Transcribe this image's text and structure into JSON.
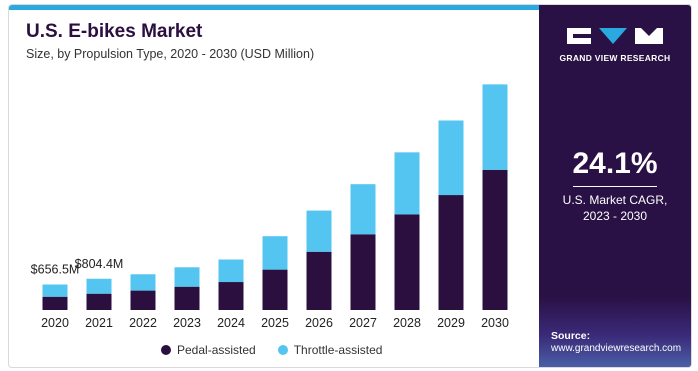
{
  "header": {
    "title": "U.S. E-bikes Market",
    "subtitle": "Size, by Propulsion Type, 2020 - 2030 (USD Million)"
  },
  "colors": {
    "pedal": "#2a0f3f",
    "throttle": "#54c4f0",
    "accent_bar": "#29a9e0",
    "panel": "#2a1145"
  },
  "side_panel": {
    "brand": "GRAND VIEW RESEARCH",
    "cagr_value": "24.1%",
    "cagr_label": "U.S. Market CAGR,",
    "cagr_period": "2023 - 2030",
    "source_label": "Source:",
    "source_url": "www.grandviewresearch.com"
  },
  "chart_data": {
    "type": "bar",
    "stacked": true,
    "title": "U.S. E-bikes Market",
    "subtitle": "Size, by Propulsion Type, 2020 - 2030 (USD Million)",
    "xlabel": "",
    "ylabel": "",
    "categories": [
      "2020",
      "2021",
      "2022",
      "2023",
      "2024",
      "2025",
      "2026",
      "2027",
      "2028",
      "2029",
      "2030"
    ],
    "series": [
      {
        "name": "Pedal-assisted",
        "values": [
          342,
          420,
          500,
          600,
          720,
          1040,
          1500,
          1950,
          2460,
          2960,
          3610
        ]
      },
      {
        "name": "Throttle-assisted",
        "values": [
          314.5,
          384.4,
          420,
          500,
          580,
          860,
          1060,
          1290,
          1600,
          1920,
          2200
        ]
      }
    ],
    "data_labels": [
      {
        "category": "2020",
        "text": "$656.5M"
      },
      {
        "category": "2021",
        "text": "$804.4M"
      }
    ],
    "ylim": [
      0,
      6000
    ],
    "grid": false,
    "legend_position": "bottom"
  }
}
